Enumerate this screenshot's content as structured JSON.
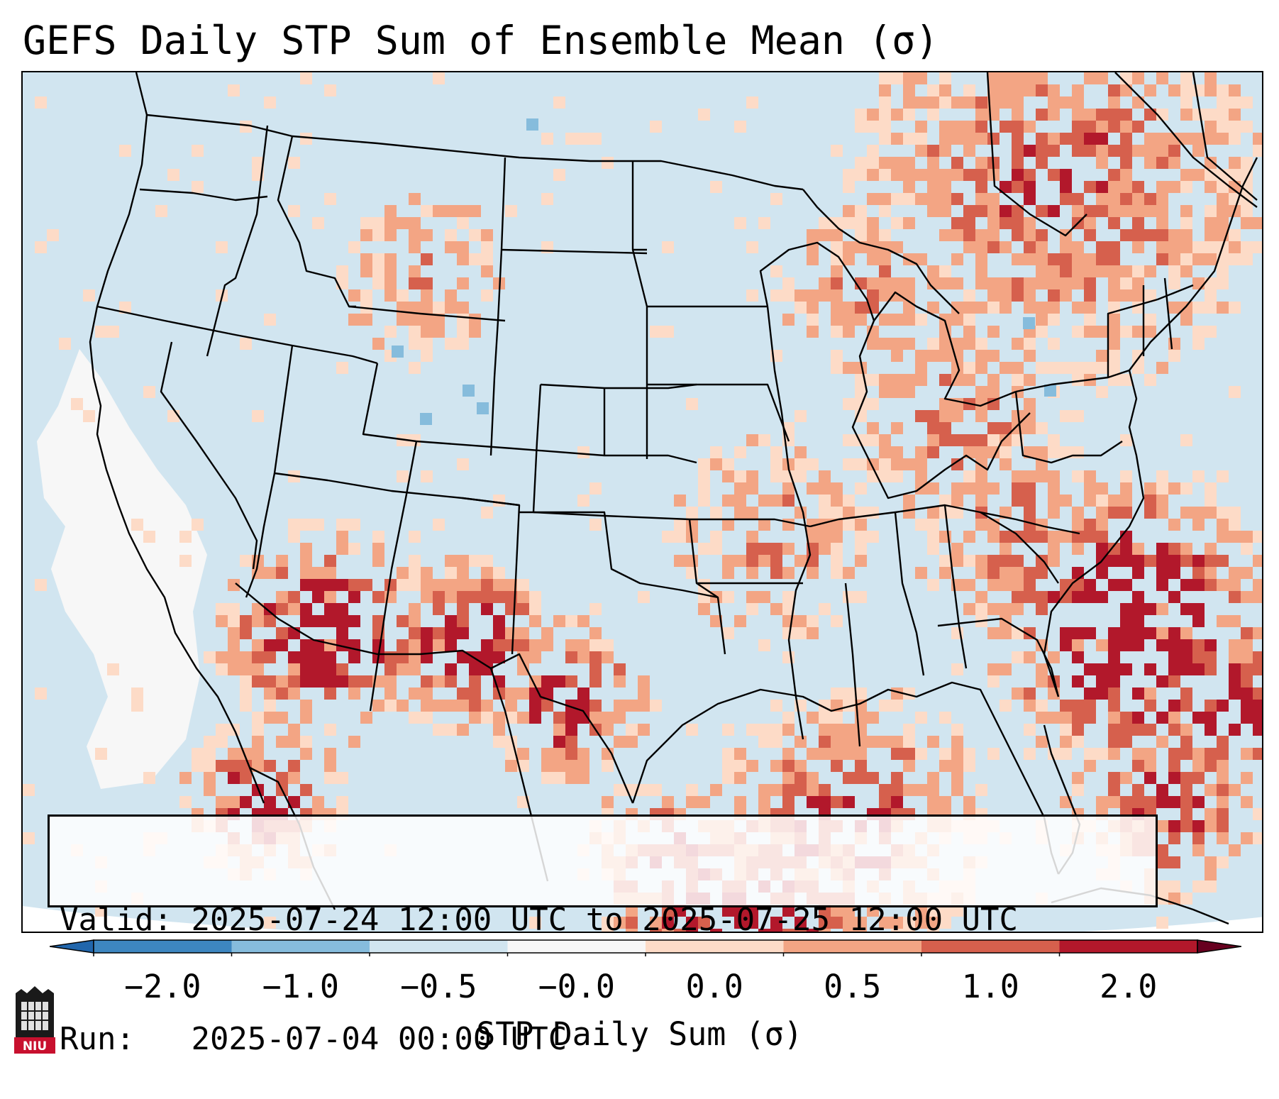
{
  "title": "GEFS Daily STP Sum of Ensemble Mean (σ)",
  "info": {
    "valid_label": "Valid:",
    "valid_value": "2025-07-24 12:00 UTC to 2025-07-25 12:00 UTC",
    "run_label": "Run:",
    "run_value": "2025-07-04 00:00 UTC"
  },
  "colorbar": {
    "label": "STP Daily Sum (σ)",
    "ticks": [
      "−2.0",
      "−1.0",
      "−0.5",
      "−0.0",
      "0.0",
      "0.5",
      "1.0",
      "2.0"
    ],
    "colors": [
      "#3d86c0",
      "#86bcdc",
      "#d1e5f0",
      "#f7f7f7",
      "#fddbc7",
      "#f3a584",
      "#d6604d",
      "#b2182b"
    ],
    "extend": "both"
  },
  "map": {
    "projection": "Lambert Conformal, CONUS",
    "background_color": "#d1e5f0",
    "regions": [
      {
        "name": "Pacific NW coast",
        "category": "-0.0 to 0.0"
      },
      {
        "name": "Southwest / Sonora",
        "category": "1.0 to 2.0"
      },
      {
        "name": "West Texas",
        "category": "1.0 to 2.0"
      },
      {
        "name": "Carolinas offshore",
        "category": "1.0 to 2.0"
      },
      {
        "name": "Gulf of Mexico",
        "category": "0.5 to 1.0"
      },
      {
        "name": "Quebec / Ontario",
        "category": "0.0 to 0.5"
      }
    ]
  },
  "logo": {
    "text": "NIU",
    "color": "#c8102e"
  }
}
